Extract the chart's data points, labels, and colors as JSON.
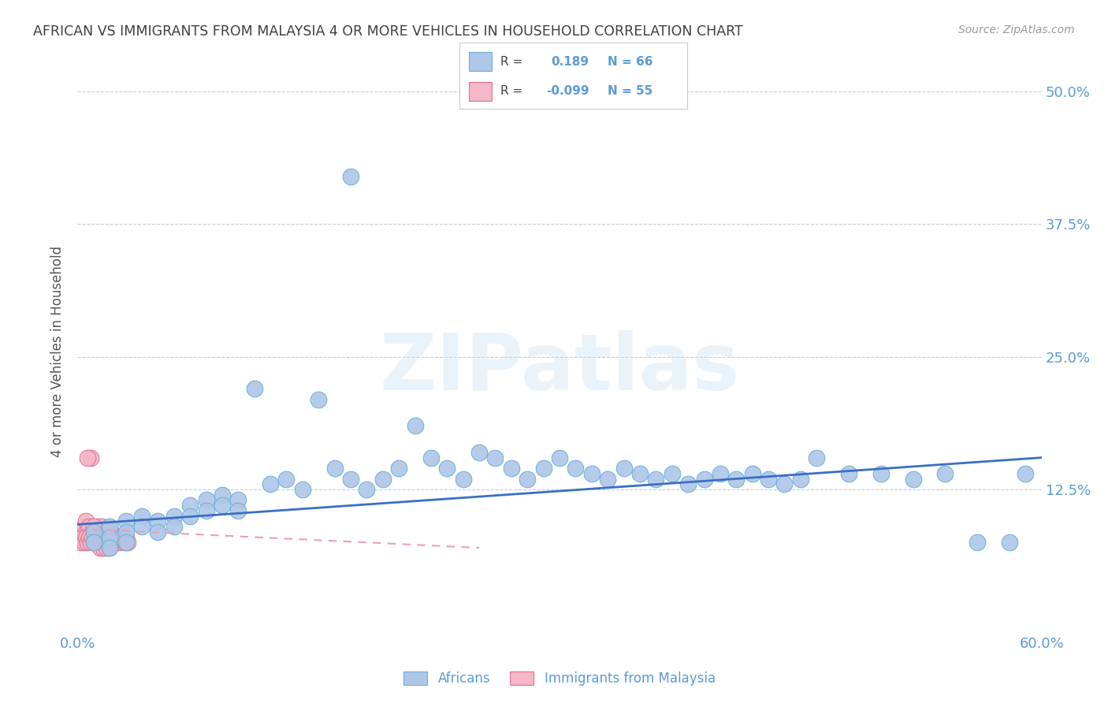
{
  "title": "AFRICAN VS IMMIGRANTS FROM MALAYSIA 4 OR MORE VEHICLES IN HOUSEHOLD CORRELATION CHART",
  "source": "Source: ZipAtlas.com",
  "ylabel": "4 or more Vehicles in Household",
  "xlim": [
    0.0,
    0.6
  ],
  "ylim": [
    -0.01,
    0.52
  ],
  "xticks": [
    0.0,
    0.1,
    0.2,
    0.3,
    0.4,
    0.5,
    0.6
  ],
  "xtick_labels": [
    "0.0%",
    "",
    "",
    "",
    "",
    "",
    "60.0%"
  ],
  "yticks": [
    0.0,
    0.125,
    0.25,
    0.375,
    0.5
  ],
  "ytick_labels": [
    "",
    "12.5%",
    "25.0%",
    "37.5%",
    "50.0%"
  ],
  "grid_color": "#cccccc",
  "background_color": "#ffffff",
  "africans_color": "#aec6e8",
  "africans_edge_color": "#6baed6",
  "malaysia_color": "#f4b8c8",
  "malaysia_edge_color": "#e07090",
  "africans_R": 0.189,
  "africans_N": 66,
  "malaysia_R": -0.099,
  "malaysia_N": 55,
  "africans_line_color": "#3a6fc4",
  "malaysia_line_color": "#e8a0b8",
  "legend_label_africans": "Africans",
  "legend_label_malaysia": "Immigrants from Malaysia",
  "watermark": "ZIPatlas",
  "title_color": "#404040",
  "axis_label_color": "#5b9bd5",
  "africans_x": [
    0.01,
    0.01,
    0.02,
    0.02,
    0.02,
    0.03,
    0.03,
    0.03,
    0.04,
    0.04,
    0.05,
    0.05,
    0.06,
    0.06,
    0.07,
    0.07,
    0.08,
    0.08,
    0.09,
    0.09,
    0.1,
    0.1,
    0.11,
    0.12,
    0.13,
    0.14,
    0.15,
    0.16,
    0.17,
    0.18,
    0.19,
    0.2,
    0.21,
    0.22,
    0.23,
    0.24,
    0.25,
    0.26,
    0.27,
    0.28,
    0.29,
    0.3,
    0.31,
    0.32,
    0.33,
    0.34,
    0.35,
    0.36,
    0.37,
    0.38,
    0.39,
    0.4,
    0.41,
    0.42,
    0.43,
    0.44,
    0.45,
    0.46,
    0.48,
    0.5,
    0.52,
    0.54,
    0.56,
    0.58,
    0.59,
    0.17
  ],
  "africans_y": [
    0.085,
    0.075,
    0.09,
    0.08,
    0.07,
    0.095,
    0.085,
    0.075,
    0.1,
    0.09,
    0.095,
    0.085,
    0.1,
    0.09,
    0.11,
    0.1,
    0.115,
    0.105,
    0.12,
    0.11,
    0.115,
    0.105,
    0.22,
    0.13,
    0.135,
    0.125,
    0.21,
    0.145,
    0.135,
    0.125,
    0.135,
    0.145,
    0.185,
    0.155,
    0.145,
    0.135,
    0.16,
    0.155,
    0.145,
    0.135,
    0.145,
    0.155,
    0.145,
    0.14,
    0.135,
    0.145,
    0.14,
    0.135,
    0.14,
    0.13,
    0.135,
    0.14,
    0.135,
    0.14,
    0.135,
    0.13,
    0.135,
    0.155,
    0.14,
    0.14,
    0.135,
    0.14,
    0.075,
    0.075,
    0.14,
    0.42
  ],
  "malaysia_x": [
    0.002,
    0.003,
    0.004,
    0.005,
    0.006,
    0.007,
    0.008,
    0.009,
    0.01,
    0.011,
    0.012,
    0.013,
    0.014,
    0.015,
    0.016,
    0.017,
    0.018,
    0.019,
    0.02,
    0.021,
    0.022,
    0.023,
    0.024,
    0.025,
    0.026,
    0.027,
    0.028,
    0.029,
    0.03,
    0.031,
    0.002,
    0.003,
    0.004,
    0.005,
    0.006,
    0.007,
    0.008,
    0.009,
    0.01,
    0.011,
    0.012,
    0.013,
    0.014,
    0.015,
    0.016,
    0.017,
    0.018,
    0.019,
    0.02,
    0.021,
    0.006,
    0.01,
    0.014,
    0.018,
    0.022
  ],
  "malaysia_y": [
    0.08,
    0.085,
    0.09,
    0.095,
    0.085,
    0.09,
    0.155,
    0.085,
    0.08,
    0.085,
    0.09,
    0.08,
    0.085,
    0.09,
    0.085,
    0.08,
    0.085,
    0.075,
    0.08,
    0.085,
    0.08,
    0.075,
    0.08,
    0.075,
    0.08,
    0.075,
    0.08,
    0.075,
    0.08,
    0.075,
    0.075,
    0.08,
    0.075,
    0.08,
    0.075,
    0.08,
    0.075,
    0.08,
    0.075,
    0.08,
    0.075,
    0.08,
    0.07,
    0.075,
    0.07,
    0.075,
    0.07,
    0.075,
    0.07,
    0.075,
    0.155,
    0.09,
    0.08,
    0.085,
    0.08
  ]
}
